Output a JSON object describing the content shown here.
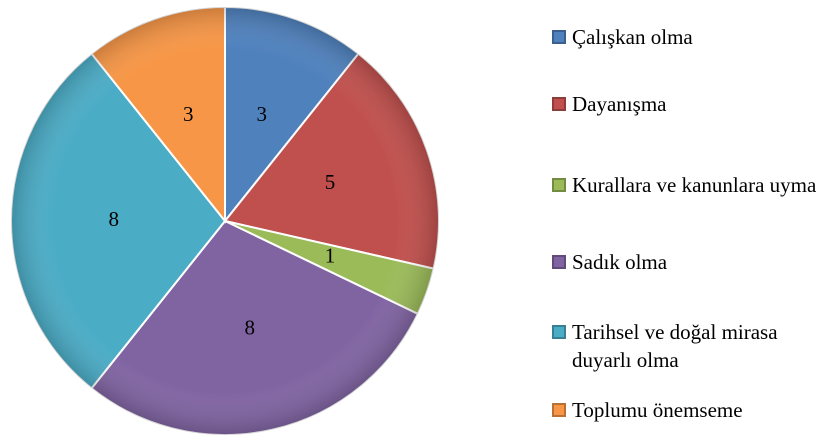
{
  "chart_data": {
    "type": "pie",
    "categories": [
      "Çalışkan olma",
      "Dayanışma",
      "Kurallara ve kanunlara uyma",
      "Sadık olma",
      "Tarihsel ve doğal mirasa duyarlı olma",
      "Toplumu önemseme"
    ],
    "values": [
      3,
      5,
      1,
      8,
      8,
      3
    ],
    "colors": [
      "#4f81bd",
      "#c0504d",
      "#9bbb59",
      "#8064a2",
      "#4bacc6",
      "#f79646"
    ]
  }
}
